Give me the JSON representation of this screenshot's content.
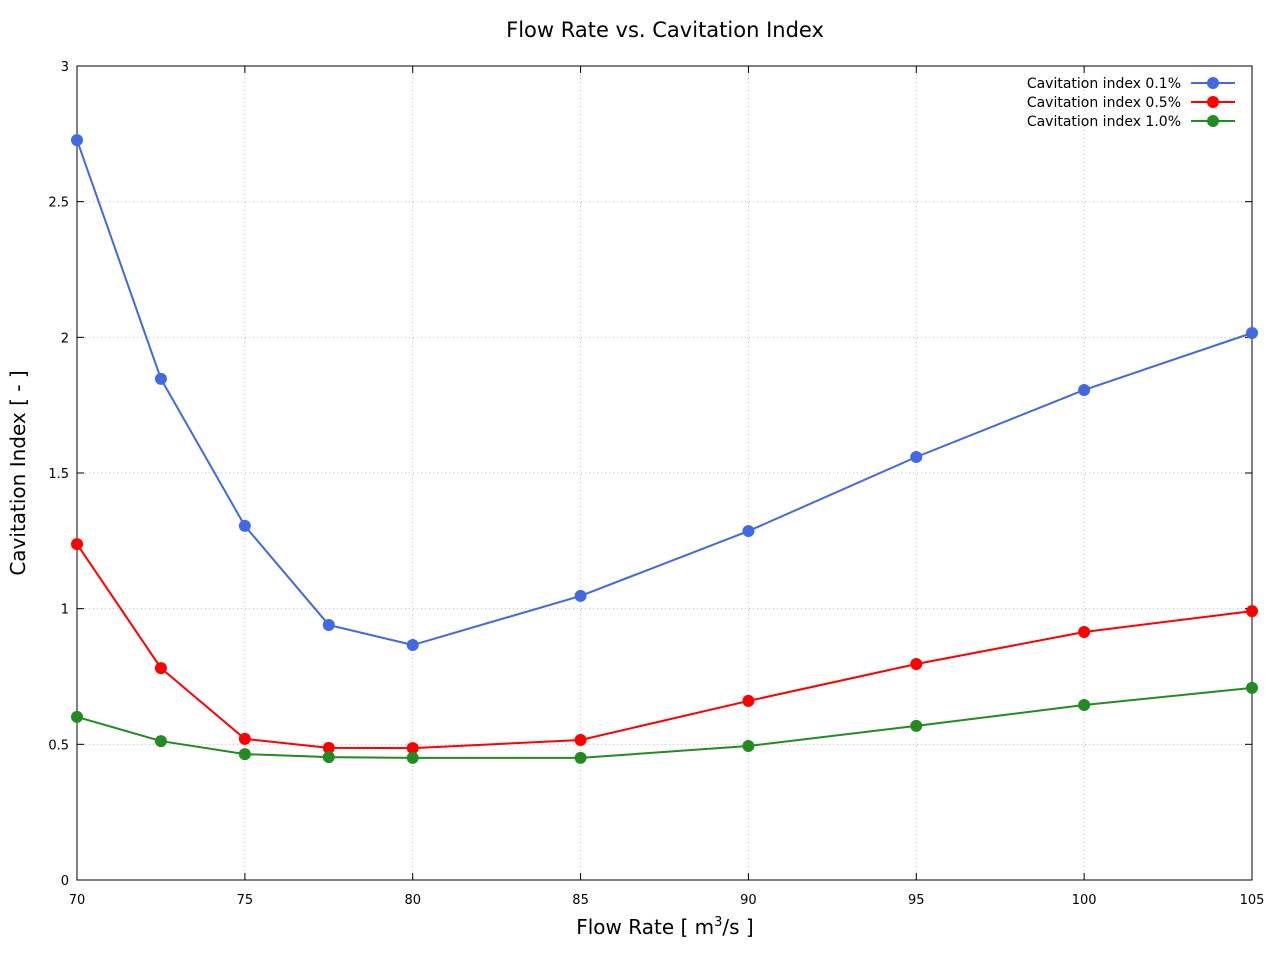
{
  "chart_data": {
    "type": "line",
    "title": "Flow Rate vs. Cavitation Index",
    "xlabel": "Flow Rate [ m3/s ]",
    "xlabel_parts": {
      "pre": "Flow Rate [ m",
      "sup": "3",
      "post": "/s ]"
    },
    "ylabel": "Cavitation Index [ - ]",
    "xlim": [
      70,
      105
    ],
    "ylim": [
      0,
      3
    ],
    "xticks": [
      70,
      75,
      80,
      85,
      90,
      95,
      100,
      105
    ],
    "yticks": [
      0,
      0.5,
      1,
      1.5,
      2,
      2.5,
      3
    ],
    "ytick_labels": [
      "0",
      "0.5",
      "1",
      "1.5",
      "2",
      "2.5",
      "3"
    ],
    "grid": true,
    "legend_position": "top-right",
    "x": [
      70,
      72.5,
      75,
      77.5,
      80,
      85,
      90,
      95,
      100,
      105
    ],
    "series": [
      {
        "name": "Cavitation index 0.1%",
        "color": "#4169e1",
        "values": [
          2.727,
          1.847,
          1.305,
          0.94,
          0.866,
          1.047,
          1.286,
          1.559,
          1.806,
          2.016
        ]
      },
      {
        "name": "Cavitation index 0.5%",
        "color": "#ff0000",
        "values": [
          1.238,
          0.781,
          0.52,
          0.487,
          0.486,
          0.516,
          0.66,
          0.796,
          0.914,
          0.991
        ]
      },
      {
        "name": "Cavitation index 1.0%",
        "color": "#228b22",
        "values": [
          0.601,
          0.512,
          0.464,
          0.453,
          0.45,
          0.45,
          0.494,
          0.568,
          0.645,
          0.708
        ]
      }
    ]
  }
}
